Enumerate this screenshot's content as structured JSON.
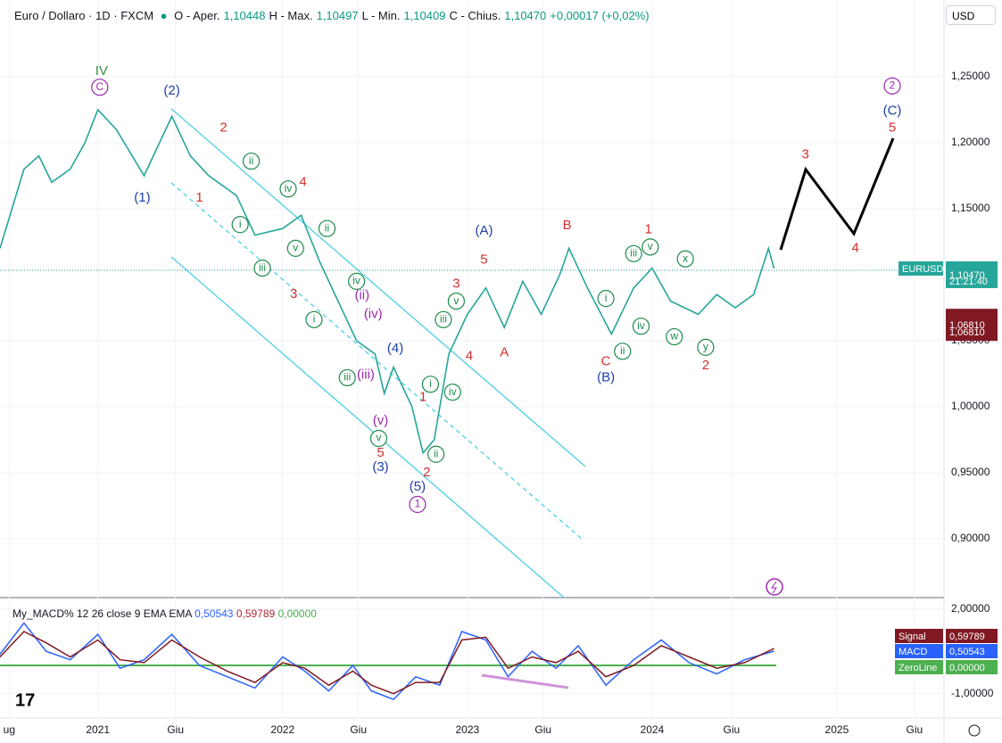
{
  "header": {
    "ohlc": [
      "O - Aper.",
      "1,10448",
      "H - Max.",
      "1,10497",
      "L - Min.",
      "1,10409",
      "C - Chius.",
      "1,10470",
      "+0,00017 (+0,02%)"
    ],
    "currency": "USD",
    "last_label": "1,10470",
    "countdown": "21:21:40",
    "alert": {
      "value": 1.0681,
      "labels": [
        "1,06810",
        "1,06810"
      ]
    }
  },
  "chart_data": [
    {
      "type": "line",
      "title": "Euro / Dollaro · 1D · FXCM",
      "grid": true,
      "x": [
        2020.47,
        2020.6,
        2020.68,
        2020.75,
        2020.85,
        2020.93,
        2021.0,
        2021.1,
        2021.25,
        2021.4,
        2021.5,
        2021.6,
        2021.75,
        2021.85,
        2022.0,
        2022.1,
        2022.2,
        2022.3,
        2022.4,
        2022.5,
        2022.55,
        2022.6,
        2022.7,
        2022.76,
        2022.82,
        2022.9,
        2023.0,
        2023.1,
        2023.2,
        2023.3,
        2023.4,
        2023.5,
        2023.55,
        2023.65,
        2023.78,
        2023.9,
        2024.0,
        2024.1,
        2024.25,
        2024.35,
        2024.45,
        2024.55,
        2024.63,
        2024.66
      ],
      "series": [
        {
          "name": "EURUSD",
          "color": "#26a69a",
          "values": [
            1.12,
            1.18,
            1.19,
            1.17,
            1.18,
            1.2,
            1.225,
            1.21,
            1.175,
            1.22,
            1.19,
            1.175,
            1.16,
            1.13,
            1.135,
            1.145,
            1.11,
            1.08,
            1.05,
            1.04,
            1.01,
            1.03,
            1.0,
            0.965,
            0.975,
            1.04,
            1.07,
            1.09,
            1.06,
            1.095,
            1.07,
            1.1,
            1.12,
            1.09,
            1.055,
            1.09,
            1.105,
            1.08,
            1.07,
            1.085,
            1.075,
            1.085,
            1.12,
            1.1047
          ]
        }
      ],
      "xlim": [
        2020.47,
        2025.58
      ],
      "xticks": [
        {
          "value": 2020.52,
          "label": "ug"
        },
        {
          "value": 2021,
          "label": "2021"
        },
        {
          "value": 2021.42,
          "label": "Giu"
        },
        {
          "value": 2022,
          "label": "2022"
        },
        {
          "value": 2022.41,
          "label": "Giu"
        },
        {
          "value": 2023,
          "label": "2023"
        },
        {
          "value": 2023.41,
          "label": "Giu"
        },
        {
          "value": 2024,
          "label": "2024"
        },
        {
          "value": 2024.43,
          "label": "Giu"
        },
        {
          "value": 2025,
          "label": "2025"
        },
        {
          "value": 2025.42,
          "label": "Giu"
        }
      ],
      "ylim": [
        0.8554,
        1.3081
      ],
      "yticks": [
        {
          "value": 1.25,
          "label": "1,25000"
        },
        {
          "value": 1.2,
          "label": "1,20000"
        },
        {
          "value": 1.15,
          "label": "1,15000"
        },
        {
          "value": 1.05,
          "label": "1,05000"
        },
        {
          "value": 1.0,
          "label": "1,00000"
        },
        {
          "value": 0.95,
          "label": "0,95000"
        },
        {
          "value": 0.9,
          "label": "0,90000"
        }
      ],
      "annotations": [
        {
          "text": "IV",
          "x": 2021.02,
          "y": 1.254,
          "color": "#388e3c"
        },
        {
          "text": "C",
          "x": 2021.01,
          "y": 1.242,
          "color": "#9c27b0",
          "circle": true
        },
        {
          "text": "(2)",
          "x": 2021.4,
          "y": 1.239,
          "color": "#1e3fa8"
        },
        {
          "text": "(1)",
          "x": 2021.24,
          "y": 1.158,
          "color": "#1e3fa8"
        },
        {
          "text": "2",
          "x": 2021.68,
          "y": 1.211,
          "color": "#d32f2f"
        },
        {
          "text": "1",
          "x": 2021.55,
          "y": 1.158,
          "color": "#d32f2f"
        },
        {
          "text": "ii",
          "x": 2021.83,
          "y": 1.186,
          "color": "#1b8a4a",
          "circle": true
        },
        {
          "text": "iv",
          "x": 2022.03,
          "y": 1.165,
          "color": "#1b8a4a",
          "circle": true
        },
        {
          "text": "4",
          "x": 2022.11,
          "y": 1.17,
          "color": "#d32f2f"
        },
        {
          "text": "i",
          "x": 2021.77,
          "y": 1.138,
          "color": "#1b8a4a",
          "circle": true
        },
        {
          "text": "ii",
          "x": 2022.24,
          "y": 1.135,
          "color": "#1b8a4a",
          "circle": true
        },
        {
          "text": "iii",
          "x": 2021.89,
          "y": 1.105,
          "color": "#1b8a4a",
          "circle": true
        },
        {
          "text": "v",
          "x": 2022.07,
          "y": 1.12,
          "color": "#1b8a4a",
          "circle": true
        },
        {
          "text": "3",
          "x": 2022.06,
          "y": 1.085,
          "color": "#d32f2f"
        },
        {
          "text": "iv",
          "x": 2022.4,
          "y": 1.095,
          "color": "#1b8a4a",
          "circle": true
        },
        {
          "text": "(ii)",
          "x": 2022.43,
          "y": 1.084,
          "color": "#9c27b0"
        },
        {
          "text": "(iv)",
          "x": 2022.49,
          "y": 1.07,
          "color": "#9c27b0"
        },
        {
          "text": "i",
          "x": 2022.17,
          "y": 1.066,
          "color": "#1b8a4a",
          "circle": true
        },
        {
          "text": "(4)",
          "x": 2022.61,
          "y": 1.044,
          "color": "#1e3fa8"
        },
        {
          "text": "iii",
          "x": 2022.35,
          "y": 1.022,
          "color": "#1b8a4a",
          "circle": true
        },
        {
          "text": "(iii)",
          "x": 2022.45,
          "y": 1.024,
          "color": "#9c27b0"
        },
        {
          "text": "(v)",
          "x": 2022.53,
          "y": 0.989,
          "color": "#9c27b0"
        },
        {
          "text": "v",
          "x": 2022.52,
          "y": 0.976,
          "color": "#1b8a4a",
          "circle": true
        },
        {
          "text": "5",
          "x": 2022.53,
          "y": 0.965,
          "color": "#d32f2f"
        },
        {
          "text": "(3)",
          "x": 2022.53,
          "y": 0.954,
          "color": "#1e3fa8"
        },
        {
          "text": "1",
          "x": 2022.76,
          "y": 1.007,
          "color": "#d32f2f"
        },
        {
          "text": "i",
          "x": 2022.8,
          "y": 1.017,
          "color": "#1b8a4a",
          "circle": true
        },
        {
          "text": "iv",
          "x": 2022.92,
          "y": 1.011,
          "color": "#1b8a4a",
          "circle": true
        },
        {
          "text": "ii",
          "x": 2022.83,
          "y": 0.964,
          "color": "#1b8a4a",
          "circle": true
        },
        {
          "text": "2",
          "x": 2022.78,
          "y": 0.95,
          "color": "#d32f2f"
        },
        {
          "text": "(5)",
          "x": 2022.73,
          "y": 0.939,
          "color": "#1e3fa8"
        },
        {
          "text": "1",
          "x": 2022.73,
          "y": 0.926,
          "color": "#9c27b0",
          "circle": true
        },
        {
          "text": "iii",
          "x": 2022.87,
          "y": 1.066,
          "color": "#1b8a4a",
          "circle": true
        },
        {
          "text": "v",
          "x": 2022.94,
          "y": 1.08,
          "color": "#1b8a4a",
          "circle": true
        },
        {
          "text": "3",
          "x": 2022.94,
          "y": 1.093,
          "color": "#d32f2f"
        },
        {
          "text": "4",
          "x": 2023.01,
          "y": 1.038,
          "color": "#d32f2f"
        },
        {
          "text": "5",
          "x": 2023.09,
          "y": 1.111,
          "color": "#d32f2f"
        },
        {
          "text": "(A)",
          "x": 2023.09,
          "y": 1.133,
          "color": "#1e3fa8"
        },
        {
          "text": "A",
          "x": 2023.2,
          "y": 1.041,
          "color": "#d32f2f"
        },
        {
          "text": "B",
          "x": 2023.54,
          "y": 1.137,
          "color": "#d32f2f"
        },
        {
          "text": "C",
          "x": 2023.75,
          "y": 1.034,
          "color": "#d32f2f"
        },
        {
          "text": "(B)",
          "x": 2023.75,
          "y": 1.022,
          "color": "#1e3fa8"
        },
        {
          "text": "i",
          "x": 2023.75,
          "y": 1.082,
          "color": "#1b8a4a",
          "circle": true
        },
        {
          "text": "ii",
          "x": 2023.84,
          "y": 1.042,
          "color": "#1b8a4a",
          "circle": true
        },
        {
          "text": "iii",
          "x": 2023.9,
          "y": 1.116,
          "color": "#1b8a4a",
          "circle": true
        },
        {
          "text": "iv",
          "x": 2023.94,
          "y": 1.061,
          "color": "#1b8a4a",
          "circle": true
        },
        {
          "text": "v",
          "x": 2023.99,
          "y": 1.121,
          "color": "#1b8a4a",
          "circle": true
        },
        {
          "text": "1",
          "x": 2023.98,
          "y": 1.134,
          "color": "#d32f2f"
        },
        {
          "text": "x",
          "x": 2024.18,
          "y": 1.112,
          "color": "#1b8a4a",
          "circle": true
        },
        {
          "text": "w",
          "x": 2024.12,
          "y": 1.053,
          "color": "#1b8a4a",
          "circle": true
        },
        {
          "text": "y",
          "x": 2024.29,
          "y": 1.045,
          "color": "#1b8a4a",
          "circle": true
        },
        {
          "text": "2",
          "x": 2024.29,
          "y": 1.031,
          "color": "#d32f2f"
        },
        {
          "text": "3",
          "x": 2024.83,
          "y": 1.191,
          "color": "#d32f2f"
        },
        {
          "text": "4",
          "x": 2025.1,
          "y": 1.12,
          "color": "#d32f2f"
        },
        {
          "text": "5",
          "x": 2025.3,
          "y": 1.211,
          "color": "#d32f2f"
        },
        {
          "text": "(C)",
          "x": 2025.3,
          "y": 1.224,
          "color": "#1e3fa8"
        },
        {
          "text": "2",
          "x": 2025.3,
          "y": 1.243,
          "color": "#9c27b0",
          "circle": true
        }
      ]
    },
    {
      "type": "line",
      "title": "My_MACD% 12 26 close 9 EMA EMA",
      "header_values": [
        "0,50543",
        "0,59789",
        "0,00000"
      ],
      "x": [
        2020.47,
        2020.6,
        2020.72,
        2020.85,
        2021.0,
        2021.12,
        2021.25,
        2021.4,
        2021.55,
        2021.7,
        2021.85,
        2022.0,
        2022.12,
        2022.25,
        2022.38,
        2022.48,
        2022.6,
        2022.72,
        2022.85,
        2022.97,
        2023.1,
        2023.22,
        2023.35,
        2023.48,
        2023.6,
        2023.75,
        2023.9,
        2024.05,
        2024.2,
        2024.35,
        2024.5,
        2024.66
      ],
      "series": [
        {
          "name": "MACD",
          "color": "#2962ff",
          "label": "0,50543",
          "values": [
            0.4,
            1.5,
            0.5,
            0.2,
            1.1,
            -0.1,
            0.2,
            1.1,
            0.0,
            -0.4,
            -0.8,
            0.3,
            -0.2,
            -0.9,
            0.0,
            -0.9,
            -1.2,
            -0.4,
            -0.7,
            1.2,
            0.9,
            -0.4,
            0.5,
            -0.1,
            0.7,
            -0.7,
            0.2,
            0.9,
            0.1,
            -0.3,
            0.2,
            0.50543
          ]
        },
        {
          "name": "Signal",
          "color": "#801922",
          "label": "0,59789",
          "values": [
            0.3,
            1.2,
            0.8,
            0.3,
            0.9,
            0.2,
            0.1,
            0.9,
            0.3,
            -0.2,
            -0.6,
            0.1,
            -0.1,
            -0.7,
            -0.2,
            -0.7,
            -1.0,
            -0.6,
            -0.6,
            0.9,
            1.0,
            -0.1,
            0.3,
            0.1,
            0.5,
            -0.4,
            0.0,
            0.7,
            0.3,
            -0.1,
            0.1,
            0.59789
          ]
        }
      ],
      "zero_line": {
        "name": "ZeroLine",
        "value": 0,
        "label": "0,00000",
        "color": "#4caf50"
      },
      "ylim": [
        -1.86,
        2.4
      ],
      "yticks": [
        {
          "value": 2,
          "label": "2,00000"
        },
        {
          "value": -1,
          "label": "-1,00000"
        }
      ]
    }
  ]
}
